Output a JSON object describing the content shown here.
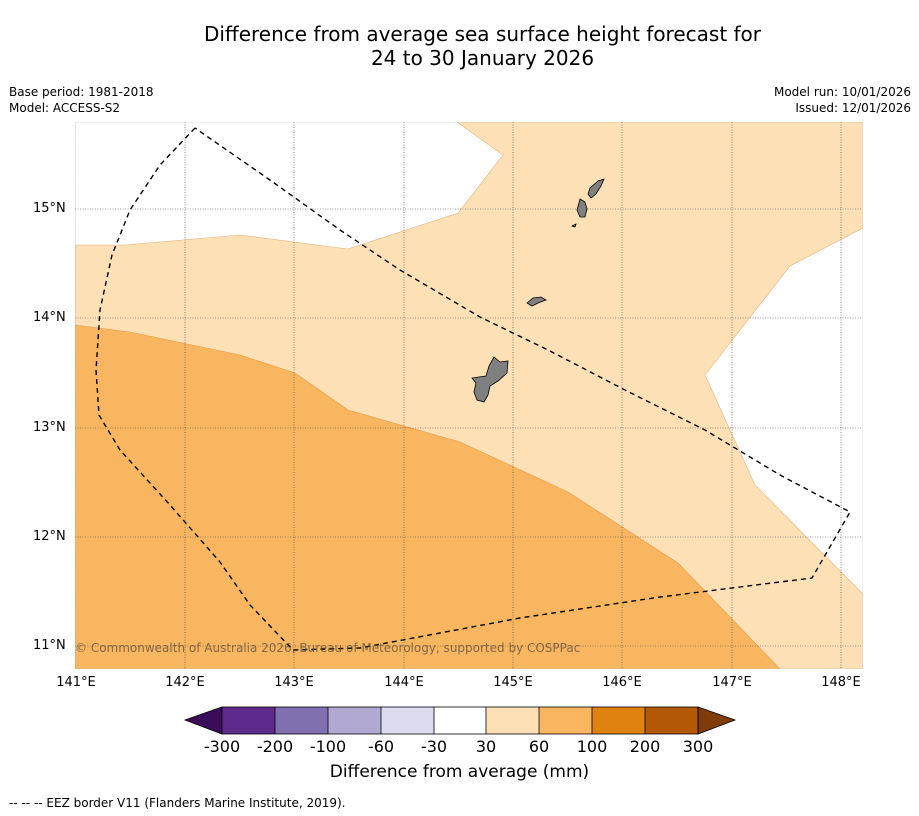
{
  "title_line1": "Difference from average sea surface height forecast for",
  "title_line2": "24 to 30 January 2026",
  "meta_left": {
    "base_period": "Base period: 1981-2018",
    "model": "Model: ACCESS-S2"
  },
  "meta_right": {
    "model_run": "Model run: 10/01/2026",
    "issued": "Issued: 12/01/2026"
  },
  "copyright": "© Commonwealth of Australia 2026, Bureau of Meteorology, supported by COSPPac",
  "lat_labels": [
    "15°N",
    "14°N",
    "13°N",
    "12°N",
    "11°N"
  ],
  "lon_labels": [
    "141°E",
    "142°E",
    "143°E",
    "144°E",
    "145°E",
    "146°E",
    "147°E",
    "148°E"
  ],
  "colorbar": {
    "title": "Difference from average (mm)",
    "ticks": [
      "-300",
      "-200",
      "-100",
      "-60",
      "-30",
      "30",
      "60",
      "100",
      "200",
      "300"
    ],
    "colors": [
      "#3b0c5a",
      "#5e2b8d",
      "#8070b0",
      "#b2a9d3",
      "#dcdaef",
      "#ffffff",
      "#fde0b6",
      "#f9b661",
      "#e0820f",
      "#b35806",
      "#7f3b08"
    ]
  },
  "legend_note": "-- -- -- EEZ border V11 (Flanders Marine Institute, 2019)."
}
